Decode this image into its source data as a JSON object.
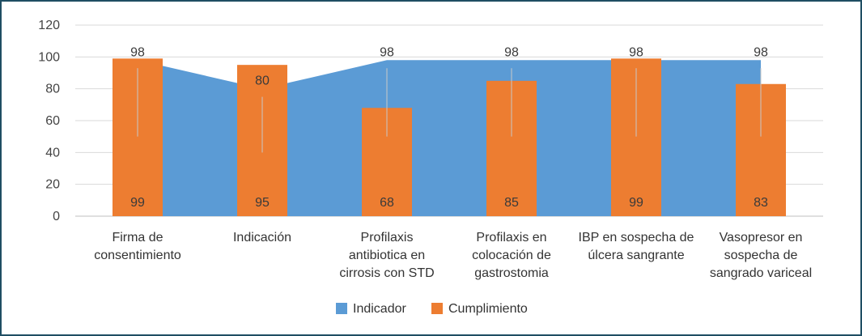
{
  "chart_data": {
    "type": "bar",
    "title": "",
    "xlabel": "",
    "ylabel": "",
    "ylim": [
      0,
      120
    ],
    "yticks": [
      0,
      20,
      40,
      60,
      80,
      100,
      120
    ],
    "grid": true,
    "legend_position": "bottom",
    "categories": [
      [
        "Firma de",
        "consentimiento"
      ],
      [
        "Indicación"
      ],
      [
        "Profilaxis",
        "antibiotica en",
        "cirrosis con STD"
      ],
      [
        "Profilaxis en",
        "colocación de",
        "gastrostomia"
      ],
      [
        "IBP en sospecha de",
        "úlcera sangrante"
      ],
      [
        "Vasopresor en",
        "sospecha de",
        "sangrado variceal"
      ]
    ],
    "series": [
      {
        "name": "Indicador",
        "kind": "area",
        "color": "#5b9bd5",
        "values": [
          98,
          80,
          98,
          98,
          98,
          98
        ]
      },
      {
        "name": "Cumplimiento",
        "kind": "bar",
        "color": "#ed7d31",
        "values": [
          99,
          95,
          68,
          85,
          99,
          83
        ]
      }
    ]
  }
}
